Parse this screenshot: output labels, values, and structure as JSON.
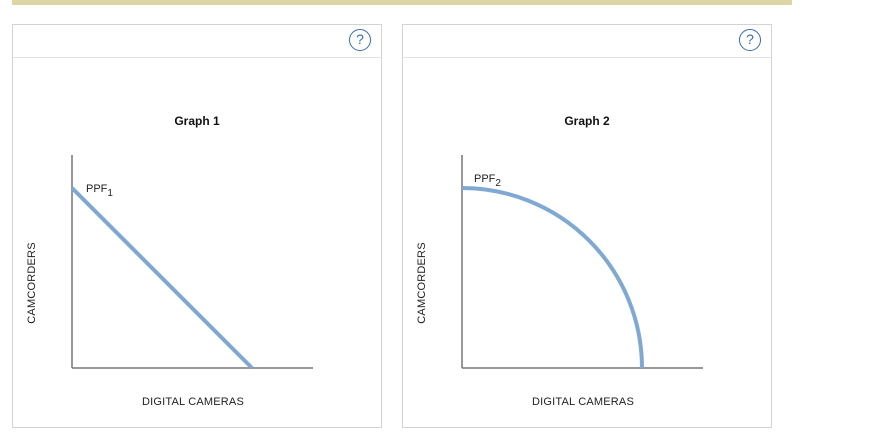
{
  "help_symbol": "?",
  "chart_data": [
    {
      "type": "line",
      "title": "Graph 1",
      "xlabel": "DIGITAL CAMERAS",
      "ylabel": "CAMCORDERS",
      "series": [
        {
          "name": "PPF",
          "subscript": "1",
          "shape": "linear",
          "points": [
            [
              0,
              100
            ],
            [
              100,
              0
            ]
          ]
        }
      ],
      "xlim": [
        0,
        130
      ],
      "ylim": [
        0,
        130
      ],
      "line_color": "#7fa9d2",
      "axis_color": "#777777"
    },
    {
      "type": "line",
      "title": "Graph 2",
      "xlabel": "DIGITAL CAMERAS",
      "ylabel": "CAMCORDERS",
      "series": [
        {
          "name": "PPF",
          "subscript": "2",
          "shape": "concave",
          "points": [
            [
              0,
              100
            ],
            [
              100,
              0
            ]
          ]
        }
      ],
      "xlim": [
        0,
        130
      ],
      "ylim": [
        0,
        130
      ],
      "line_color": "#7fa9d2",
      "axis_color": "#777777"
    }
  ]
}
